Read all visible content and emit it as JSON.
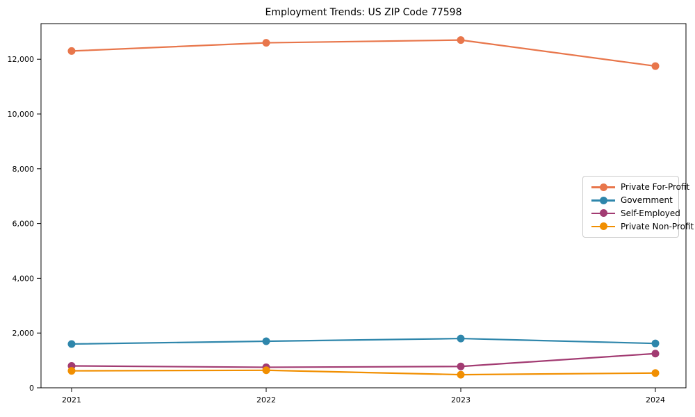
{
  "chart_data": {
    "type": "line",
    "title": "Employment Trends: US ZIP Code 77598",
    "xlabel": "",
    "ylabel": "",
    "x": [
      2021,
      2022,
      2023,
      2024
    ],
    "x_tick_labels": [
      "2021",
      "2022",
      "2023",
      "2024"
    ],
    "series": [
      {
        "name": "Private For-Profit",
        "color": "#E8764B",
        "values": [
          12300,
          12600,
          12700,
          11750
        ]
      },
      {
        "name": "Government",
        "color": "#2E86AB",
        "values": [
          1600,
          1700,
          1800,
          1620
        ]
      },
      {
        "name": "Self-Employed",
        "color": "#A23B72",
        "values": [
          800,
          750,
          780,
          1250
        ]
      },
      {
        "name": "Private Non-Profit",
        "color": "#F18F01",
        "values": [
          620,
          640,
          480,
          540
        ]
      }
    ],
    "yticks": [
      0,
      2000,
      4000,
      6000,
      8000,
      10000,
      12000
    ],
    "ytick_labels": [
      "0",
      "2,000",
      "4,000",
      "6,000",
      "8,000",
      "10,000",
      "12,000"
    ],
    "ylim": [
      0,
      13300
    ],
    "grid": false,
    "legend_position": "center-right",
    "frame_color": "#000000",
    "background_color": "#ffffff"
  }
}
